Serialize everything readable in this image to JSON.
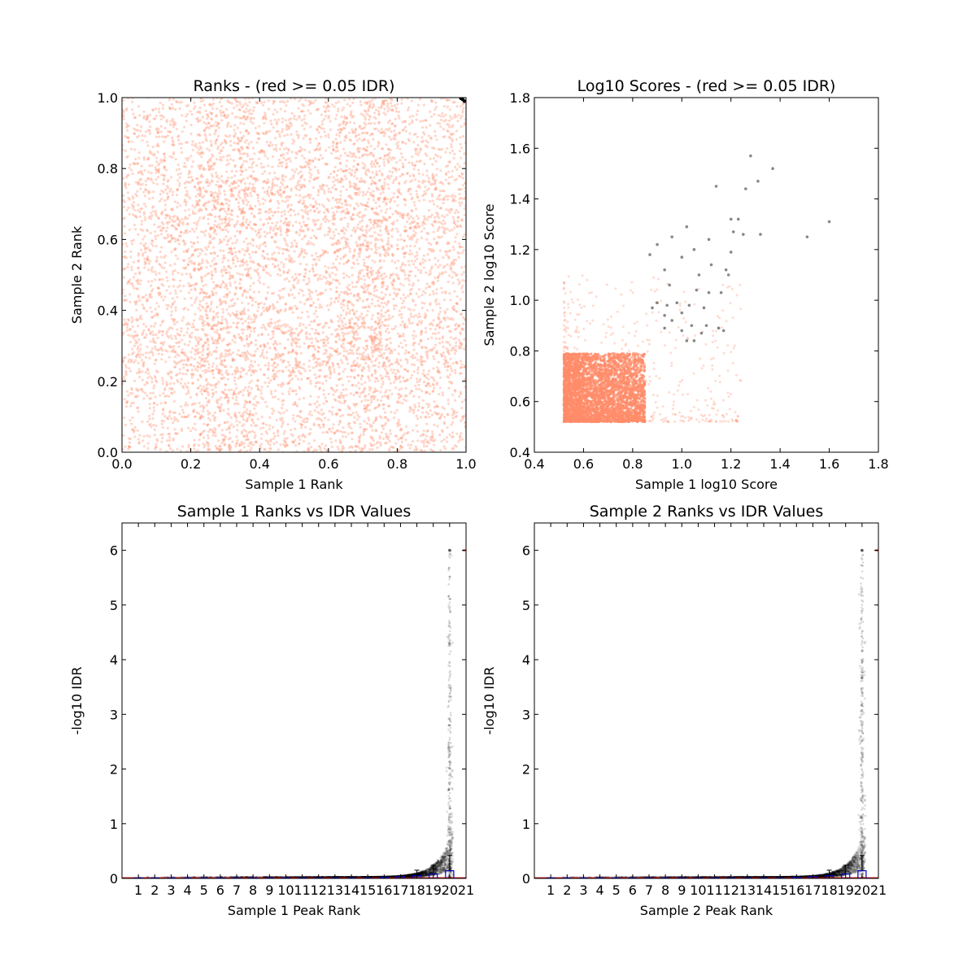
{
  "chart_data": [
    {
      "type": "scatter",
      "title": "Ranks - (red >= 0.05 IDR)",
      "xlabel": "Sample 1 Rank",
      "ylabel": "Sample 2 Rank",
      "xlim": [
        0.0,
        1.0
      ],
      "ylim": [
        0.0,
        1.0
      ],
      "xticks": [
        "0.0",
        "0.2",
        "0.4",
        "0.6",
        "0.8",
        "1.0"
      ],
      "yticks": [
        "0.0",
        "0.2",
        "0.4",
        "0.6",
        "0.8",
        "1.0"
      ],
      "grid": false,
      "series": [
        {
          "color": "#ff8c69",
          "description": "dense uniform cloud of ranked peaks over the full 0-1 range, with denser blocks near 0.25-0.35 and 0.65-0.75"
        },
        {
          "color": "#000000",
          "points": [
            [
              0.99,
              0.995
            ],
            [
              0.995,
              0.99
            ],
            [
              0.985,
              0.998
            ]
          ]
        }
      ]
    },
    {
      "type": "scatter",
      "title": "Log10 Scores - (red >= 0.05 IDR)",
      "xlabel": "Sample 1 log10 Score",
      "ylabel": "Sample 2 log10 Score",
      "xlim": [
        0.4,
        1.8
      ],
      "ylim": [
        0.4,
        1.8
      ],
      "xticks": [
        "0.4",
        "0.6",
        "0.8",
        "1.0",
        "1.2",
        "1.4",
        "1.6",
        "1.8"
      ],
      "yticks": [
        "0.4",
        "0.6",
        "0.8",
        "1.0",
        "1.2",
        "1.4",
        "1.6",
        "1.8"
      ],
      "grid": false,
      "series": [
        {
          "color": "#ff8c69",
          "description": "dense block 0.52-0.85 x 0.52-0.79, sparse tail up to about 1.25 x 1.1"
        },
        {
          "color": "#555555",
          "points": [
            [
              1.28,
              1.57
            ],
            [
              1.37,
              1.52
            ],
            [
              1.31,
              1.47
            ],
            [
              1.14,
              1.45
            ],
            [
              1.26,
              1.44
            ],
            [
              1.2,
              1.32
            ],
            [
              1.23,
              1.32
            ],
            [
              1.6,
              1.31
            ],
            [
              1.21,
              1.27
            ],
            [
              1.25,
              1.26
            ],
            [
              1.32,
              1.26
            ],
            [
              1.51,
              1.25
            ],
            [
              1.02,
              1.29
            ],
            [
              0.96,
              1.25
            ],
            [
              1.11,
              1.24
            ],
            [
              0.9,
              1.22
            ],
            [
              1.05,
              1.2
            ],
            [
              1.2,
              1.19
            ],
            [
              0.87,
              1.18
            ],
            [
              1.0,
              1.17
            ],
            [
              1.12,
              1.14
            ],
            [
              1.18,
              1.12
            ],
            [
              0.93,
              1.12
            ],
            [
              1.07,
              1.1
            ],
            [
              1.19,
              1.1
            ],
            [
              0.95,
              1.06
            ],
            [
              1.06,
              1.04
            ],
            [
              1.11,
              1.03
            ],
            [
              1.16,
              1.03
            ],
            [
              0.98,
              0.99
            ],
            [
              1.03,
              0.98
            ],
            [
              0.9,
              0.99
            ],
            [
              0.94,
              0.98
            ],
            [
              1.09,
              0.97
            ],
            [
              0.93,
              0.94
            ],
            [
              1.0,
              0.95
            ],
            [
              0.88,
              0.97
            ],
            [
              0.96,
              0.92
            ],
            [
              1.04,
              0.9
            ],
            [
              1.1,
              0.9
            ],
            [
              1.15,
              0.89
            ],
            [
              0.93,
              0.89
            ],
            [
              1.0,
              0.88
            ],
            [
              1.08,
              0.87
            ],
            [
              1.17,
              0.88
            ],
            [
              1.02,
              0.84
            ],
            [
              1.05,
              0.84
            ]
          ]
        }
      ]
    },
    {
      "type": "scatter",
      "title": "Sample 1 Ranks vs IDR Values",
      "xlabel": "Sample 1 Peak Rank",
      "ylabel": "-log10 IDR",
      "xlim": [
        0,
        21
      ],
      "ylim": [
        0,
        6.5
      ],
      "xticks": [
        "1",
        "2",
        "3",
        "4",
        "5",
        "6",
        "7",
        "8",
        "9",
        "10",
        "11",
        "12",
        "13",
        "14",
        "15",
        "16",
        "17",
        "18",
        "19",
        "20",
        "21"
      ],
      "yticks": [
        "0",
        "1",
        "2",
        "3",
        "4",
        "5",
        "6"
      ],
      "grid": false,
      "series": [
        {
          "color": "#000000",
          "description": "-log10 IDR near 0 for low ranks, rising steeply near rank 20 up to 6"
        },
        {
          "color": "#0000cc",
          "type": "box",
          "values": [
            0.0,
            0.0,
            0.0,
            0.0,
            0.0,
            0.0,
            0.0,
            0.0,
            0.0,
            0.0,
            0.0,
            0.0,
            0.0,
            0.0,
            0.01,
            0.02,
            0.03,
            0.05,
            0.08,
            0.14
          ]
        }
      ]
    },
    {
      "type": "scatter",
      "title": "Sample 2 Ranks vs IDR Values",
      "xlabel": "Sample 2 Peak Rank",
      "ylabel": "-log10 IDR",
      "xlim": [
        0,
        21
      ],
      "ylim": [
        0,
        6.5
      ],
      "xticks": [
        "1",
        "2",
        "3",
        "4",
        "5",
        "6",
        "7",
        "8",
        "9",
        "10",
        "11",
        "12",
        "13",
        "14",
        "15",
        "16",
        "17",
        "18",
        "19",
        "20",
        "21"
      ],
      "yticks": [
        "0",
        "1",
        "2",
        "3",
        "4",
        "5",
        "6"
      ],
      "grid": false,
      "series": [
        {
          "color": "#000000",
          "description": "-log10 IDR near 0 for low ranks, rising steeply near rank 20 up to 6"
        },
        {
          "color": "#0000cc",
          "type": "box",
          "values": [
            0.0,
            0.0,
            0.0,
            0.0,
            0.0,
            0.0,
            0.0,
            0.0,
            0.0,
            0.0,
            0.0,
            0.0,
            0.0,
            0.0,
            0.01,
            0.02,
            0.03,
            0.05,
            0.08,
            0.14
          ]
        }
      ]
    }
  ]
}
